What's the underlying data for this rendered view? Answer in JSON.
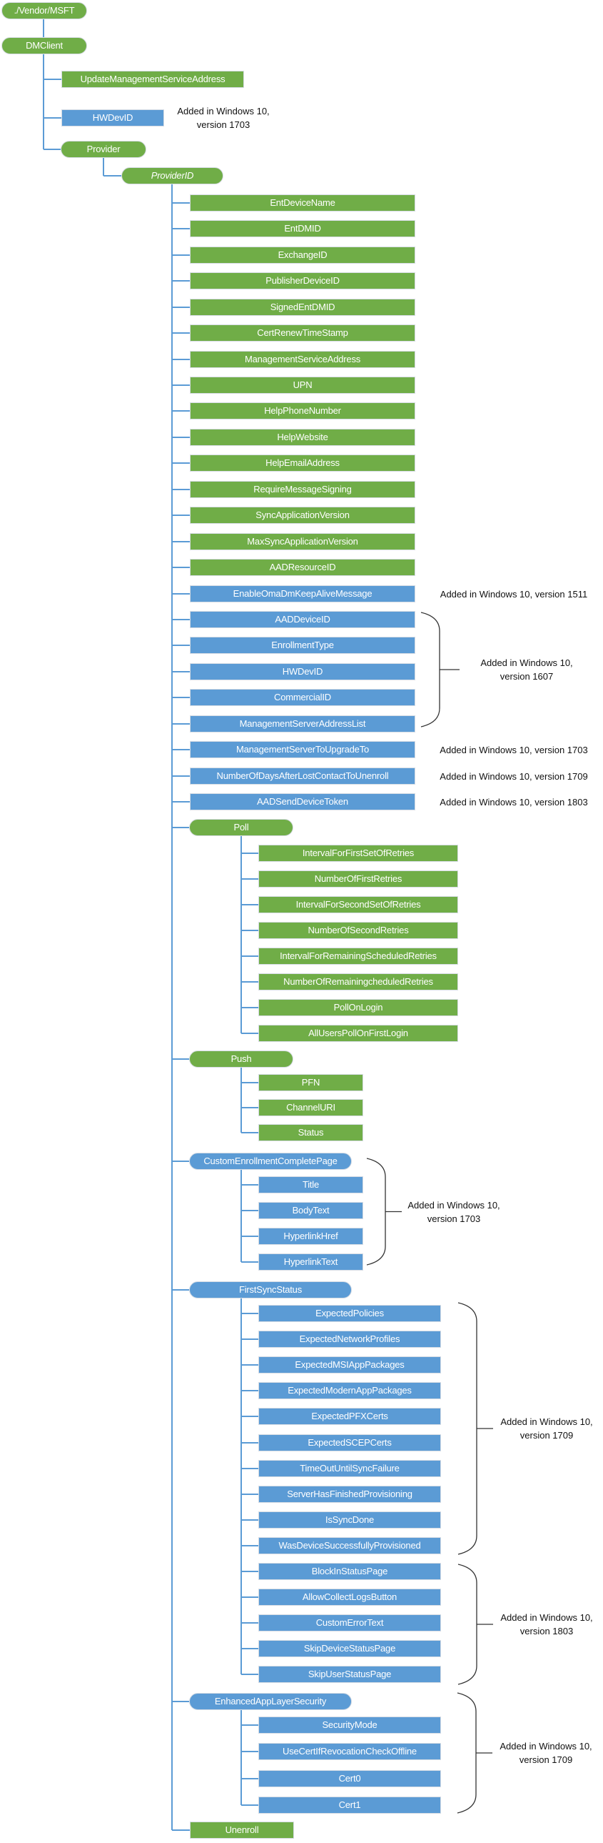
{
  "colors": {
    "green": "#70ad47",
    "blue": "#5b9bd5",
    "connector": "#5b9bd5",
    "brace": "#333333"
  },
  "nodes": {
    "vendor": {
      "label": "./Vendor/MSFT",
      "color": "green",
      "shape": "pill"
    },
    "dmclient": {
      "label": "DMClient",
      "color": "green",
      "shape": "pill"
    },
    "update_msa": {
      "label": "UpdateManagementServiceAddress",
      "color": "green",
      "shape": "rect"
    },
    "hwdevid": {
      "label": "HWDevID",
      "color": "blue",
      "shape": "rect"
    },
    "provider": {
      "label": "Provider",
      "color": "green",
      "shape": "pill"
    },
    "providerid": {
      "label": "ProviderID",
      "color": "green",
      "shape": "pill",
      "italic": true
    },
    "provider_children": [
      {
        "label": "EntDeviceName",
        "color": "green"
      },
      {
        "label": "EntDMID",
        "color": "green"
      },
      {
        "label": "ExchangeID",
        "color": "green"
      },
      {
        "label": "PublisherDeviceID",
        "color": "green"
      },
      {
        "label": "SignedEntDMID",
        "color": "green"
      },
      {
        "label": "CertRenewTimeStamp",
        "color": "green"
      },
      {
        "label": "ManagementServiceAddress",
        "color": "green"
      },
      {
        "label": "UPN",
        "color": "green"
      },
      {
        "label": "HelpPhoneNumber",
        "color": "green"
      },
      {
        "label": "HelpWebsite",
        "color": "green"
      },
      {
        "label": "HelpEmailAddress",
        "color": "green"
      },
      {
        "label": "RequireMessageSigning",
        "color": "green"
      },
      {
        "label": "SyncApplicationVersion",
        "color": "green"
      },
      {
        "label": "MaxSyncApplicationVersion",
        "color": "green"
      },
      {
        "label": "AADResourceID",
        "color": "green"
      },
      {
        "label": "EnableOmaDmKeepAliveMessage",
        "color": "blue"
      },
      {
        "label": "AADDeviceID",
        "color": "blue"
      },
      {
        "label": "EnrollmentType",
        "color": "blue"
      },
      {
        "label": "HWDevID",
        "color": "blue"
      },
      {
        "label": "CommercialID",
        "color": "blue"
      },
      {
        "label": "ManagementServerAddressList",
        "color": "blue"
      },
      {
        "label": "ManagementServerToUpgradeTo",
        "color": "blue"
      },
      {
        "label": "NumberOfDaysAfterLostContactToUnenroll",
        "color": "blue"
      },
      {
        "label": "AADSendDeviceToken",
        "color": "blue"
      }
    ],
    "poll": {
      "label": "Poll",
      "color": "green",
      "shape": "pill",
      "children": [
        "IntervalForFirstSetOfRetries",
        "NumberOfFirstRetries",
        "IntervalForSecondSetOfRetries",
        "NumberOfSecondRetries",
        "IntervalForRemainingScheduledRetries",
        "NumberOfRemainingcheduledRetries",
        "PollOnLogin",
        "AllUsersPollOnFirstLogin"
      ]
    },
    "push": {
      "label": "Push",
      "color": "green",
      "shape": "pill",
      "children": [
        "PFN",
        "ChannelURI",
        "Status"
      ]
    },
    "cecp": {
      "label": "CustomEnrollmentCompletePage",
      "color": "blue",
      "shape": "pill",
      "children": [
        "Title",
        "BodyText",
        "HyperlinkHref",
        "HyperlinkText"
      ]
    },
    "fss": {
      "label": "FirstSyncStatus",
      "color": "blue",
      "shape": "pill",
      "children": [
        "ExpectedPolicies",
        "ExpectedNetworkProfiles",
        "ExpectedMSIAppPackages",
        "ExpectedModernAppPackages",
        "ExpectedPFXCerts",
        "ExpectedSCEPCerts",
        "TimeOutUntilSyncFailure",
        "ServerHasFinishedProvisioning",
        "IsSyncDone",
        "WasDeviceSuccessfullyProvisioned",
        "BlockInStatusPage",
        "AllowCollectLogsButton",
        "CustomErrorText",
        "SkipDeviceStatusPage",
        "SkipUserStatusPage"
      ]
    },
    "eals": {
      "label": "EnhancedAppLayerSecurity",
      "color": "blue",
      "shape": "pill",
      "children": [
        "SecurityMode",
        "UseCertIfRevocationCheckOffline",
        "Cert0",
        "Cert1"
      ]
    },
    "unenroll": {
      "label": "Unenroll",
      "color": "green",
      "shape": "rect"
    }
  },
  "notes": {
    "hwdevid": [
      "Added in Windows 10,",
      "version 1703"
    ],
    "enable": [
      "Added in Windows 10, version 1511"
    ],
    "v1607": [
      "Added in Windows 10,",
      "version 1607"
    ],
    "mstu": [
      "Added in Windows 10, version 1703"
    ],
    "numdays": [
      "Added in Windows 10, version 1709"
    ],
    "aadsend": [
      "Added in Windows 10, version 1803"
    ],
    "cecp": [
      "Added in Windows 10,",
      "version 1703"
    ],
    "fss1709": [
      "Added in Windows 10,",
      "version 1709"
    ],
    "fss1803": [
      "Added in Windows 10,",
      "version 1803"
    ],
    "eals": [
      "Added in Windows 10,",
      "version 1709"
    ]
  }
}
